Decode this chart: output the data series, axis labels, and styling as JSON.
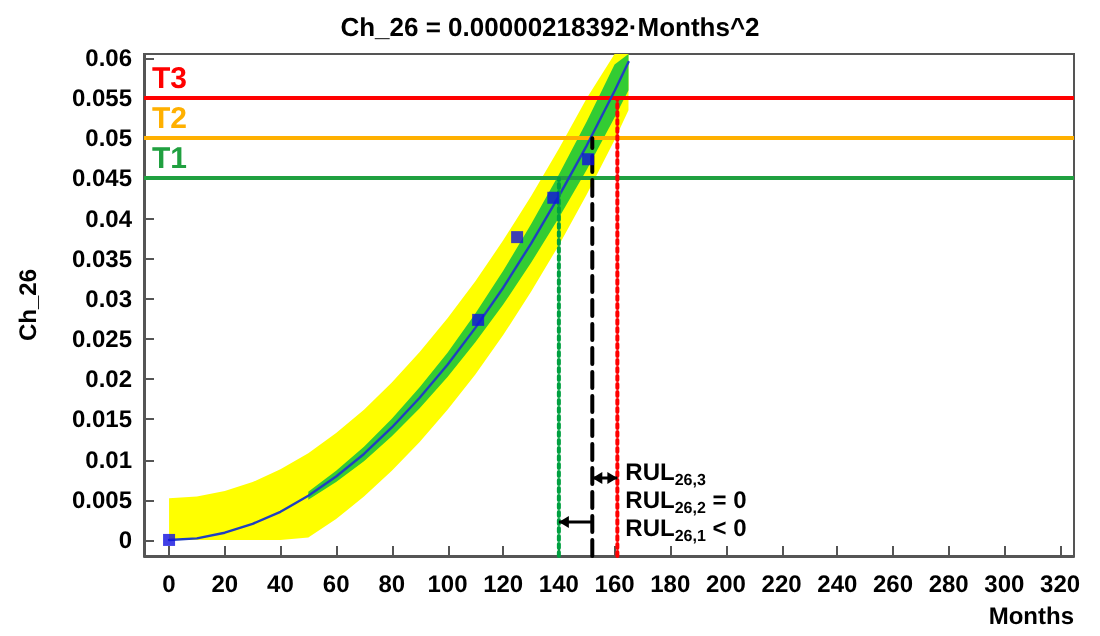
{
  "chart_data": {
    "type": "line",
    "title": "Ch_26 = 0.00000218392·Months^2",
    "xlabel": "Months",
    "ylabel": "Ch_26",
    "xlim": [
      -9,
      325
    ],
    "xticks": [
      0,
      20,
      40,
      60,
      80,
      100,
      120,
      140,
      160,
      180,
      200,
      220,
      240,
      260,
      280,
      300,
      320
    ],
    "ylim": [
      -0.002,
      0.0605
    ],
    "yticks": [
      0,
      0.005,
      0.01,
      0.015,
      0.02,
      0.025,
      0.03,
      0.035,
      0.04,
      0.045,
      0.05,
      0.055,
      0.06
    ],
    "grid": false,
    "series": [
      {
        "color": "#ffff00",
        "x": [
          0,
          10,
          20,
          30,
          40,
          50,
          60,
          70,
          80,
          90,
          100,
          110,
          120,
          130,
          140,
          150,
          160,
          165
        ],
        "values": [
          null,
          null,
          null,
          null,
          null,
          null,
          null,
          null,
          null,
          null,
          null,
          null,
          null,
          null,
          null,
          null,
          null,
          null
        ],
        "lower": [
          0,
          0,
          0,
          0,
          0,
          0.0003,
          0.0026,
          0.0054,
          0.0086,
          0.0122,
          0.0162,
          0.0206,
          0.0255,
          0.0309,
          0.0367,
          0.043,
          0.0498,
          0.0535
        ],
        "upper": [
          0.0052,
          0.0054,
          0.0061,
          0.0072,
          0.0088,
          0.0108,
          0.0133,
          0.0162,
          0.0196,
          0.0234,
          0.0276,
          0.0322,
          0.0373,
          0.0428,
          0.0487,
          0.055,
          0.0605,
          0.0605
        ]
      },
      {
        "color": "#33cc33",
        "x": [
          50,
          60,
          70,
          80,
          90,
          100,
          110,
          120,
          130,
          140,
          150,
          160,
          165
        ],
        "values": [
          null,
          null,
          null,
          null,
          null,
          null,
          null,
          null,
          null,
          null,
          null,
          null,
          null
        ],
        "lower": [
          0.005,
          0.0072,
          0.0098,
          0.0129,
          0.0164,
          0.0203,
          0.0246,
          0.0293,
          0.0345,
          0.0401,
          0.0461,
          0.0526,
          0.056
        ],
        "upper": [
          0.006,
          0.0086,
          0.0116,
          0.0151,
          0.019,
          0.0233,
          0.0282,
          0.0335,
          0.0393,
          0.0455,
          0.0521,
          0.0592,
          0.0605
        ]
      },
      {
        "color": "#2040c0",
        "x": [
          0,
          10,
          20,
          30,
          40,
          50,
          60,
          70,
          80,
          90,
          100,
          110,
          120,
          130,
          140,
          150,
          160,
          165
        ],
        "values": [
          0,
          0.0002,
          0.0009,
          0.002,
          0.0035,
          0.0055,
          0.0079,
          0.0107,
          0.014,
          0.0177,
          0.0218,
          0.0264,
          0.0314,
          0.0369,
          0.0428,
          0.0491,
          0.0559,
          0.0595
        ]
      },
      {
        "type": "scatter",
        "color": "#1010e0",
        "marker": "square",
        "x": [
          0,
          111,
          125,
          138,
          150.5
        ],
        "values": [
          0,
          0.0274,
          0.0377,
          0.0426,
          0.0474
        ]
      },
      {
        "color": "#00a040",
        "line_style": "dotted",
        "x": [
          140,
          140
        ],
        "values": [
          -0.002,
          0.045
        ]
      },
      {
        "color": "#000000",
        "line_style": "dashed",
        "x": [
          152,
          152
        ],
        "values": [
          -0.002,
          0.05
        ]
      },
      {
        "color": "#ff0000",
        "line_style": "dotted",
        "x": [
          161,
          161
        ],
        "values": [
          -0.002,
          0.055
        ]
      }
    ],
    "ref_lines": [
      {
        "axis": "y",
        "value": 0.055,
        "label": "T3",
        "color": "#ff0000"
      },
      {
        "axis": "y",
        "value": 0.05,
        "label": "T2",
        "color": "#ffb000"
      },
      {
        "axis": "y",
        "value": 0.045,
        "label": "T1",
        "color": "#20a040"
      }
    ],
    "annotations": [
      "RUL$_{26,3}$",
      "RUL$_{26,2}$ = 0",
      "RUL$_{26,1}$ < 0"
    ]
  }
}
